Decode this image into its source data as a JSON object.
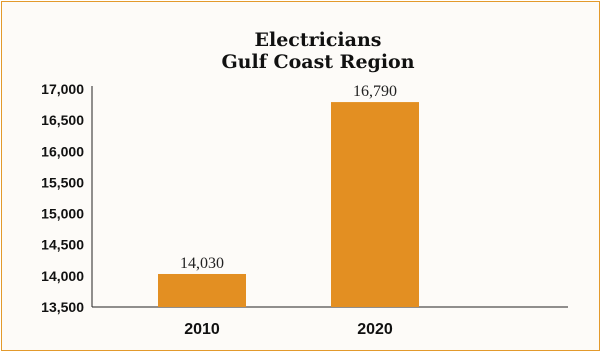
{
  "chart_data": {
    "type": "bar",
    "title_lines": [
      "Electricians",
      "Gulf Coast Region"
    ],
    "categories": [
      "2010",
      "2020"
    ],
    "values": [
      14030,
      16790
    ],
    "data_labels": [
      "14,030",
      "16,790"
    ],
    "yticks": [
      13500,
      14000,
      14500,
      15000,
      15500,
      16000,
      16500,
      17000
    ],
    "ytick_labels": [
      "13,500",
      "14,000",
      "14,500",
      "15,000",
      "15,500",
      "16,000",
      "16,500",
      "17,000"
    ],
    "ylim": [
      13500,
      17000
    ],
    "xlabel": "",
    "ylabel": "",
    "grid": false,
    "legend": "none",
    "bar_color": "#e38f22",
    "frame_color": "#e39a2c"
  }
}
